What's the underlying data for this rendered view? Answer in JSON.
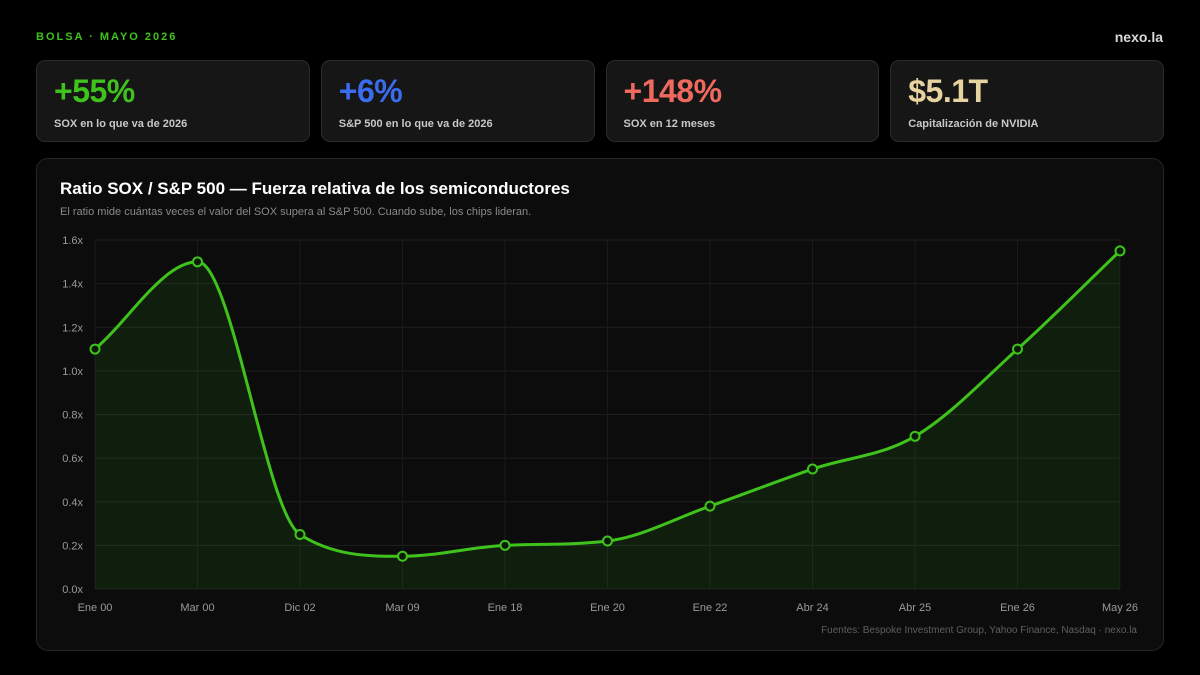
{
  "header": {
    "kicker": "BOLSA · MAYO 2026",
    "brand": "nexo.la"
  },
  "kpis": [
    {
      "value": "+55%",
      "label": "SOX en lo que va de 2026",
      "color": "#3fc21c"
    },
    {
      "value": "+6%",
      "label": "S&P 500 en lo que va de 2026",
      "color": "#3a6cf0"
    },
    {
      "value": "+148%",
      "label": "SOX en 12 meses",
      "color": "#ef6a5e"
    },
    {
      "value": "$5.1T",
      "label": "Capitalización de NVIDIA",
      "color": "#e6d3a0"
    }
  ],
  "chart_data": {
    "type": "area",
    "title": "Ratio SOX / S&P 500 — Fuerza relativa de los semiconductores",
    "subtitle": "El ratio mide cuántas veces el valor del SOX supera al S&P 500. Cuando sube, los chips lideran.",
    "categories": [
      "Ene 00",
      "Mar 00",
      "Dic 02",
      "Mar 09",
      "Ene 18",
      "Ene 20",
      "Ene 22",
      "Abr 24",
      "Abr 25",
      "Ene 26",
      "May 26"
    ],
    "values": [
      1.1,
      1.5,
      0.25,
      0.15,
      0.2,
      0.22,
      0.38,
      0.55,
      0.7,
      1.1,
      1.55
    ],
    "ylim": [
      0,
      1.6
    ],
    "yticks": [
      0,
      0.2,
      0.4,
      0.6,
      0.8,
      1.0,
      1.2,
      1.4,
      1.6
    ],
    "ytick_labels": [
      "0.0x",
      "0.2x",
      "0.4x",
      "0.6x",
      "0.8x",
      "1.0x",
      "1.2x",
      "1.4x",
      "1.6x"
    ],
    "grid": true,
    "line_color": "#3fc21c",
    "source": "Fuentes: Bespoke Investment Group, Yahoo Finance, Nasdaq · nexo.la"
  }
}
